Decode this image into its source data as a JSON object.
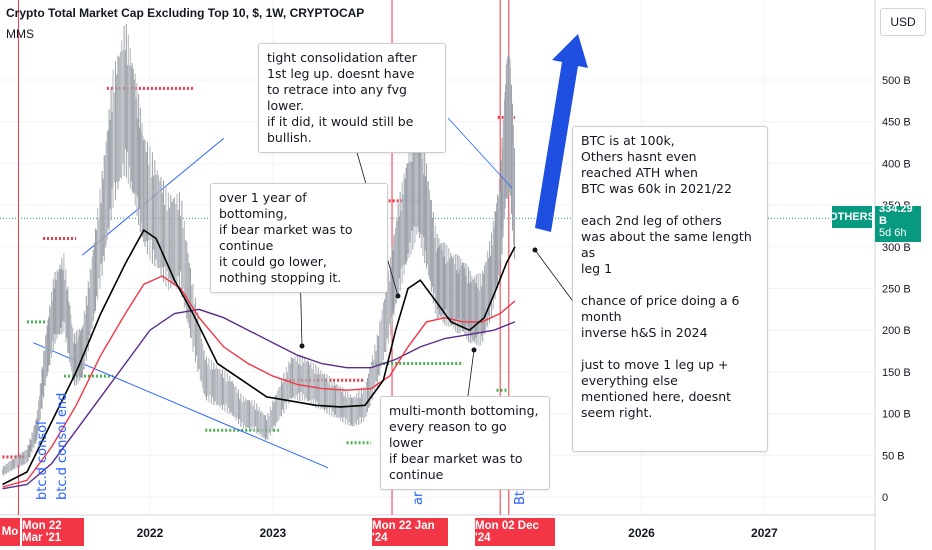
{
  "header": {
    "title": "Crypto Total Market Cap Excluding Top 10, $, 1W, CRYPTOCAP",
    "indicator": "MMS",
    "currency": "USD"
  },
  "price_tag": {
    "symbol": "OTHERS",
    "value": "334.29 B",
    "countdown": "5d 6h"
  },
  "date_tags": [
    "Mo",
    "Mon 22 Mar '21",
    "Mon 22 Jan '24",
    "Mon 02 Dec '24"
  ],
  "notes": {
    "consolidation": "tight consolidation after\n  1st leg up. doesnt have\nto retrace into any fvg lower.\nif it did, it would still be bullish.",
    "bottoming_year": "over 1 year of bottoming,\nif bear market was to continue\nit could go lower,\nnothing stopping it.",
    "multi_month": "multi-month bottoming,\nevery reason to go lower\nif bear market was to continue",
    "btc_note": "BTC is at 100k,\n Others hasnt even\n reached ATH when\nBTC was 60k in 2021/22\n\neach 2nd leg of others\nwas about the same length as\nleg 1\n\nchance of price doing a 6 month\ninverse h&S in 2024\n\njust to move 1 leg up + everything else\nmentioned here, doesnt seem right."
  },
  "vertical_labels": {
    "btc_consol": "btc.d consol",
    "btc_consol_end": "btc.d consol end",
    "btc_bottom": "BTC.d bottom",
    "ar": "ar",
    "bt": "Bt"
  },
  "colors": {
    "candle_up": "#089981",
    "candle_down": "#f23645",
    "ma_fast": "#000000",
    "ma_mid": "#f23645",
    "ma_slow": "#5b2c8c",
    "resistance": "#f23645",
    "support": "#4caf50",
    "trendline": "#2962ff",
    "arrow": "#1e4fe0",
    "vertical_line": "#f23645",
    "price_line": "#089981",
    "symbol_tag": "#089981"
  },
  "chart_data": {
    "type": "line",
    "title": "Crypto Total Market Cap Excluding Top 10, $, 1W, CRYPTOCAP",
    "x_ticks": [
      "2022",
      "2023",
      "2026",
      "2027"
    ],
    "y_ticks": [
      "0",
      "50 B",
      "100 B",
      "150 B",
      "200 B",
      "250 B",
      "300 B",
      "350 B",
      "400 B",
      "450 B",
      "500 B"
    ],
    "ylim": [
      0,
      520
    ],
    "y_unit": "B USD",
    "last_price": 334.29,
    "series": [
      {
        "name": "price",
        "x": [
          2020.8,
          2020.9,
          2021.0,
          2021.08,
          2021.15,
          2021.22,
          2021.3,
          2021.38,
          2021.45,
          2021.53,
          2021.62,
          2021.7,
          2021.8,
          2021.88,
          2021.95,
          2022.05,
          2022.15,
          2022.25,
          2022.35,
          2022.45,
          2022.55,
          2022.65,
          2022.75,
          2022.85,
          2022.95,
          2023.05,
          2023.15,
          2023.25,
          2023.35,
          2023.45,
          2023.55,
          2023.65,
          2023.75,
          2023.85,
          2023.95,
          2024.02,
          2024.1,
          2024.18,
          2024.25,
          2024.33,
          2024.4,
          2024.48,
          2024.55,
          2024.62,
          2024.7,
          2024.78,
          2024.85,
          2024.9,
          2024.93,
          2024.97
        ],
        "values": [
          30,
          40,
          48,
          80,
          160,
          220,
          240,
          160,
          170,
          240,
          330,
          420,
          470,
          420,
          360,
          330,
          300,
          300,
          210,
          140,
          130,
          120,
          100,
          95,
          80,
          110,
          140,
          140,
          130,
          120,
          110,
          100,
          110,
          160,
          230,
          290,
          340,
          380,
          330,
          260,
          250,
          240,
          235,
          220,
          220,
          260,
          320,
          430,
          440,
          334
        ]
      },
      {
        "name": "ma_fast",
        "x": [
          2020.8,
          2021.0,
          2021.2,
          2021.4,
          2021.6,
          2021.8,
          2021.95,
          2022.05,
          2022.2,
          2022.35,
          2022.55,
          2022.75,
          2022.95,
          2023.15,
          2023.35,
          2023.55,
          2023.75,
          2023.9,
          2024.0,
          2024.1,
          2024.2,
          2024.3,
          2024.45,
          2024.6,
          2024.72,
          2024.82,
          2024.9,
          2024.97
        ],
        "values": [
          15,
          30,
          90,
          150,
          220,
          280,
          320,
          310,
          260,
          220,
          160,
          140,
          120,
          115,
          110,
          108,
          110,
          140,
          200,
          250,
          260,
          240,
          210,
          200,
          215,
          250,
          280,
          300
        ]
      },
      {
        "name": "ma_mid",
        "x": [
          2020.8,
          2021.0,
          2021.2,
          2021.4,
          2021.6,
          2021.8,
          2021.95,
          2022.1,
          2022.25,
          2022.4,
          2022.6,
          2022.8,
          2023.0,
          2023.2,
          2023.4,
          2023.6,
          2023.8,
          2023.95,
          2024.1,
          2024.25,
          2024.4,
          2024.55,
          2024.7,
          2024.85,
          2024.97
        ],
        "values": [
          12,
          20,
          60,
          110,
          170,
          220,
          255,
          265,
          250,
          215,
          180,
          160,
          145,
          135,
          130,
          128,
          130,
          145,
          180,
          210,
          215,
          210,
          210,
          220,
          235
        ]
      },
      {
        "name": "ma_slow",
        "x": [
          2020.8,
          2021.0,
          2021.2,
          2021.4,
          2021.6,
          2021.8,
          2022.0,
          2022.2,
          2022.4,
          2022.6,
          2022.8,
          2023.0,
          2023.2,
          2023.4,
          2023.6,
          2023.8,
          2024.0,
          2024.2,
          2024.4,
          2024.6,
          2024.8,
          2024.97
        ],
        "values": [
          10,
          15,
          40,
          80,
          120,
          160,
          200,
          220,
          225,
          215,
          200,
          185,
          170,
          160,
          155,
          155,
          165,
          180,
          190,
          195,
          200,
          210
        ]
      }
    ],
    "levels": [
      {
        "kind": "resistance",
        "value": 48,
        "x": [
          2020.8,
          2021.0
        ]
      },
      {
        "kind": "resistance",
        "value": 310,
        "x": [
          2021.13,
          2021.4
        ]
      },
      {
        "kind": "resistance",
        "value": 490,
        "x": [
          2021.65,
          2022.35
        ]
      },
      {
        "kind": "resistance",
        "value": 355,
        "x": [
          2023.65,
          2024.2
        ]
      },
      {
        "kind": "resistance",
        "value": 455,
        "x": [
          2024.83,
          2024.97
        ]
      },
      {
        "kind": "resistance",
        "value": 140,
        "x": [
          2023.1,
          2023.75
        ]
      },
      {
        "kind": "support",
        "value": 210,
        "x": [
          2021.0,
          2021.15
        ]
      },
      {
        "kind": "support",
        "value": 145,
        "x": [
          2021.3,
          2021.7
        ]
      },
      {
        "kind": "support",
        "value": 80,
        "x": [
          2022.45,
          2023.05
        ]
      },
      {
        "kind": "support",
        "value": 160,
        "x": [
          2023.8,
          2024.55
        ]
      },
      {
        "kind": "support",
        "value": 65,
        "x": [
          2023.6,
          2023.8
        ]
      },
      {
        "kind": "support",
        "value": 128,
        "x": [
          2024.82,
          2024.92
        ]
      }
    ],
    "x_range": [
      2020.78,
      2027.9
    ],
    "grid": true,
    "log_scale": false
  }
}
